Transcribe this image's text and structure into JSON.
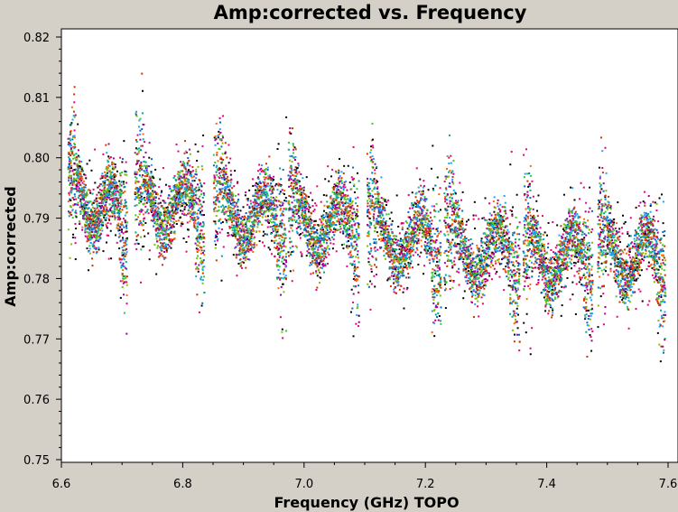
{
  "chart_data": {
    "type": "scatter",
    "title": "Amp:corrected vs. Frequency",
    "xlabel": "Frequency (GHz) TOPO",
    "ylabel": "Amp:corrected",
    "xlim": [
      6.6,
      7.6
    ],
    "ylim": [
      0.75,
      0.82
    ],
    "xticks": [
      "6.6",
      "6.8",
      "7.0",
      "7.2",
      "7.4",
      "7.6"
    ],
    "xtick_values": [
      6.6,
      6.8,
      7.0,
      7.2,
      7.4,
      7.6
    ],
    "yticks": [
      "0.75",
      "0.76",
      "0.77",
      "0.78",
      "0.79",
      "0.80",
      "0.81",
      "0.82"
    ],
    "ytick_values": [
      0.75,
      0.76,
      0.77,
      0.78,
      0.79,
      0.8,
      0.81,
      0.82
    ],
    "grid": false,
    "spectral_windows": [
      {
        "x_range": [
          6.612,
          6.708
        ],
        "center_amp": [
          0.794,
          0.79
        ]
      },
      {
        "x_range": [
          6.722,
          6.835
        ],
        "center_amp": [
          0.793,
          0.791
        ]
      },
      {
        "x_range": [
          6.852,
          6.97
        ],
        "center_amp": [
          0.792,
          0.789
        ]
      },
      {
        "x_range": [
          6.975,
          7.09
        ],
        "center_amp": [
          0.79,
          0.788
        ]
      },
      {
        "x_range": [
          7.105,
          7.225
        ],
        "center_amp": [
          0.788,
          0.785
        ]
      },
      {
        "x_range": [
          7.232,
          7.355
        ],
        "center_amp": [
          0.786,
          0.783
        ]
      },
      {
        "x_range": [
          7.362,
          7.475
        ],
        "center_amp": [
          0.784,
          0.783
        ]
      },
      {
        "x_range": [
          7.485,
          7.595
        ],
        "center_amp": [
          0.785,
          0.783
        ]
      }
    ],
    "series_colors": [
      "#000000",
      "#e6007e",
      "#ff6600",
      "#0066cc",
      "#00aa88",
      "#33cc33",
      "#7fbf00",
      "#990099",
      "#1f9fff",
      "#cc3300"
    ]
  }
}
